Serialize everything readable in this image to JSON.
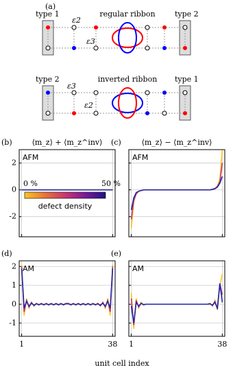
{
  "diagram": {
    "panel": "(a)",
    "top": {
      "left": "type 1",
      "middle": "regular ribbon",
      "right": "type 2",
      "e2": "ε2",
      "e3": "ε3"
    },
    "bottom": {
      "left": "type 2",
      "middle": "inverted ribbon",
      "right": "type 1",
      "e3": "ε3",
      "e2": "ε2"
    }
  },
  "chart_data": [
    {
      "type": "line",
      "panel": "(b)",
      "title": "⟨m_z⟩ + ⟨m_z^inv⟩",
      "annotation": "AFM",
      "xlim": [
        0,
        39
      ],
      "xticks": [
        1,
        38
      ],
      "ylim": [
        -3.5,
        3.0
      ],
      "yticks": [
        -2,
        0,
        2
      ],
      "grid": true,
      "show_ytick_labels": true,
      "show_xtick_labels": false,
      "colorbar": {
        "min_label": "0 %",
        "max_label": "50 %",
        "label": "defect density",
        "colors": [
          "#f9c623",
          "#e8743a",
          "#c8366e",
          "#7a1a9a",
          "#1c1480"
        ]
      },
      "x": [
        1,
        2,
        3,
        4,
        5,
        6,
        7,
        8,
        9,
        10,
        11,
        12,
        13,
        14,
        15,
        16,
        17,
        18,
        19,
        20,
        21,
        22,
        23,
        24,
        25,
        26,
        27,
        28,
        29,
        30,
        31,
        32,
        33,
        34,
        35,
        36,
        37,
        38
      ],
      "series": [
        {
          "name": "0 %",
          "color": "#f9c623",
          "values": [
            0,
            0,
            0,
            0,
            0,
            0,
            0,
            0,
            0,
            0,
            0,
            0,
            0,
            0,
            0,
            0,
            0,
            0,
            0,
            0,
            0,
            0,
            0,
            0,
            0,
            0,
            0,
            0,
            0,
            0,
            0,
            0,
            0,
            0,
            0,
            0,
            0,
            0
          ]
        },
        {
          "name": "25 %",
          "color": "#c8366e",
          "values": [
            0,
            0,
            0,
            0,
            0,
            0,
            0,
            0,
            0,
            0,
            0,
            0,
            0,
            0,
            0,
            0,
            0,
            0,
            0,
            0,
            0,
            0,
            0,
            0,
            0,
            0,
            0,
            0,
            0,
            0,
            0,
            0,
            0,
            0,
            0,
            0,
            0,
            0
          ]
        },
        {
          "name": "50 %",
          "color": "#1f2aa8",
          "values": [
            0,
            0,
            0,
            0,
            0,
            0,
            0,
            0,
            0,
            0,
            0,
            0,
            0,
            0,
            0,
            0,
            0,
            0,
            0,
            0,
            0,
            0,
            0,
            0,
            0,
            0,
            0,
            0,
            0,
            0,
            0,
            0,
            0,
            0,
            0,
            0,
            0,
            0
          ]
        }
      ]
    },
    {
      "type": "line",
      "panel": "(c)",
      "title": "⟨m_z⟩ − ⟨m_z^inv⟩",
      "annotation": "AFM",
      "xlim": [
        0,
        39
      ],
      "xticks": [
        1,
        38
      ],
      "ylim": [
        -3.5,
        3.0
      ],
      "yticks": [
        -2,
        0,
        2
      ],
      "grid": true,
      "show_ytick_labels": false,
      "show_xtick_labels": false,
      "x": [
        1,
        2,
        3,
        4,
        5,
        6,
        7,
        8,
        9,
        10,
        11,
        12,
        13,
        14,
        15,
        16,
        17,
        18,
        19,
        20,
        21,
        22,
        23,
        24,
        25,
        26,
        27,
        28,
        29,
        30,
        31,
        32,
        33,
        34,
        35,
        36,
        37,
        38
      ],
      "series": [
        {
          "name": "0 %",
          "color": "#f9c623",
          "values": [
            -2.9,
            -0.9,
            -0.3,
            -0.1,
            -0.05,
            0,
            0,
            0,
            0,
            0,
            0,
            0,
            0,
            0,
            0,
            0,
            0,
            0,
            0,
            0,
            0,
            0,
            0,
            0,
            0,
            0,
            0,
            0,
            0,
            0,
            0,
            0,
            0,
            0.05,
            0.1,
            0.3,
            0.8,
            3.0
          ]
        },
        {
          "name": "25 %",
          "color": "#c8366e",
          "values": [
            -2.2,
            -0.8,
            -0.3,
            -0.1,
            -0.05,
            0,
            0,
            0,
            0,
            0,
            0,
            0,
            0,
            0,
            0,
            0,
            0,
            0,
            0,
            0,
            0,
            0,
            0,
            0,
            0,
            0,
            0,
            0,
            0,
            0,
            0,
            0,
            0,
            0.05,
            0.1,
            0.25,
            0.6,
            2.0
          ]
        },
        {
          "name": "50 %",
          "color": "#1f2aa8",
          "values": [
            -1.5,
            -0.6,
            -0.2,
            -0.1,
            -0.05,
            0,
            0,
            0,
            0,
            0,
            0,
            0,
            0,
            0,
            0,
            0,
            0,
            0,
            0,
            0,
            0,
            0,
            0,
            0,
            0,
            0,
            0,
            0,
            0,
            0,
            0,
            0,
            0,
            0.03,
            0.08,
            0.2,
            0.5,
            1.0
          ]
        }
      ]
    },
    {
      "type": "line",
      "panel": "(d)",
      "annotation": "AM",
      "xlabel": "unit cell index",
      "xlim": [
        0,
        39
      ],
      "xticks": [
        1,
        38
      ],
      "ylim": [
        -1.7,
        2.3
      ],
      "yticks": [
        -1,
        0,
        1,
        2
      ],
      "grid": true,
      "show_ytick_labels": true,
      "show_xtick_labels": true,
      "x": [
        1,
        2,
        3,
        4,
        5,
        6,
        7,
        8,
        9,
        10,
        11,
        12,
        13,
        14,
        15,
        16,
        17,
        18,
        19,
        20,
        21,
        22,
        23,
        24,
        25,
        26,
        27,
        28,
        29,
        30,
        31,
        32,
        33,
        34,
        35,
        36,
        37,
        38
      ],
      "series": [
        {
          "name": "0 %",
          "color": "#f9c623",
          "values": [
            2.1,
            -0.6,
            0.3,
            -0.2,
            0.1,
            -0.1,
            0.05,
            -0.05,
            0.05,
            -0.05,
            0.05,
            -0.05,
            0.05,
            -0.05,
            0.05,
            -0.05,
            0.05,
            -0.05,
            0.05,
            0.05,
            -0.05,
            0.05,
            -0.05,
            0.05,
            -0.05,
            0.05,
            -0.05,
            0.05,
            -0.05,
            0.05,
            -0.05,
            0.05,
            -0.1,
            0.1,
            -0.2,
            0.3,
            -0.6,
            2.1
          ]
        },
        {
          "name": "25 %",
          "color": "#c8366e",
          "values": [
            2.0,
            -0.4,
            0.2,
            -0.15,
            0.1,
            -0.08,
            0.04,
            -0.04,
            0.04,
            -0.04,
            0.04,
            -0.04,
            0.04,
            -0.04,
            0.04,
            -0.04,
            0.04,
            -0.04,
            0.04,
            0.04,
            -0.04,
            0.04,
            -0.04,
            0.04,
            -0.04,
            0.04,
            -0.04,
            0.04,
            -0.04,
            0.04,
            -0.04,
            0.04,
            -0.08,
            0.1,
            -0.15,
            0.2,
            -0.4,
            2.0
          ]
        },
        {
          "name": "50 %",
          "color": "#1f2aa8",
          "values": [
            1.9,
            -0.2,
            0.15,
            -0.1,
            0.05,
            -0.05,
            0.02,
            -0.02,
            0.02,
            -0.02,
            0.02,
            -0.02,
            0.02,
            -0.02,
            0.02,
            -0.02,
            0.02,
            -0.02,
            0.02,
            0.02,
            -0.02,
            0.02,
            -0.02,
            0.02,
            -0.02,
            0.02,
            -0.02,
            0.02,
            -0.02,
            0.02,
            -0.02,
            0.02,
            -0.05,
            0.05,
            -0.1,
            0.15,
            -0.2,
            1.9
          ]
        }
      ]
    },
    {
      "type": "line",
      "panel": "(e)",
      "annotation": "AM",
      "xlim": [
        0,
        39
      ],
      "xticks": [
        1,
        38
      ],
      "ylim": [
        -1.7,
        2.3
      ],
      "yticks": [
        -1,
        0,
        1,
        2
      ],
      "grid": true,
      "show_ytick_labels": false,
      "show_xtick_labels": true,
      "x": [
        1,
        2,
        3,
        4,
        5,
        6,
        7,
        8,
        9,
        10,
        11,
        12,
        13,
        14,
        15,
        16,
        17,
        18,
        19,
        20,
        21,
        22,
        23,
        24,
        25,
        26,
        27,
        28,
        29,
        30,
        31,
        32,
        33,
        34,
        35,
        36,
        37,
        38
      ],
      "series": [
        {
          "name": "0 %",
          "color": "#f9c623",
          "values": [
            0.6,
            -1.3,
            0.3,
            -0.2,
            0.1,
            -0.05,
            0,
            0,
            0,
            0,
            0,
            0,
            0,
            0,
            0,
            0,
            0,
            0,
            0,
            0,
            0,
            0,
            0,
            0,
            0,
            0,
            0,
            0,
            0,
            0,
            0,
            0,
            0.05,
            -0.1,
            0.2,
            -0.3,
            1.0,
            1.6
          ]
        },
        {
          "name": "25 %",
          "color": "#c8366e",
          "values": [
            0.3,
            -1.1,
            0.2,
            -0.15,
            0.05,
            -0.03,
            0,
            0,
            0,
            0,
            0,
            0,
            0,
            0,
            0,
            0,
            0,
            0,
            0,
            0,
            0,
            0,
            0,
            0,
            0,
            0,
            0,
            0,
            0,
            0,
            0,
            0,
            0.03,
            -0.08,
            0.15,
            -0.25,
            1.1,
            0.5
          ]
        },
        {
          "name": "50 %",
          "color": "#1f2aa8",
          "values": [
            -0.1,
            -1.0,
            0.1,
            -0.1,
            0.05,
            -0.02,
            0,
            0,
            0,
            0,
            0,
            0,
            0,
            0,
            0,
            0,
            0,
            0,
            0,
            0,
            0,
            0,
            0,
            0,
            0,
            0,
            0,
            0,
            0,
            0,
            0,
            0,
            0.02,
            -0.05,
            0.1,
            -0.2,
            1.1,
            0.1
          ]
        }
      ]
    }
  ]
}
